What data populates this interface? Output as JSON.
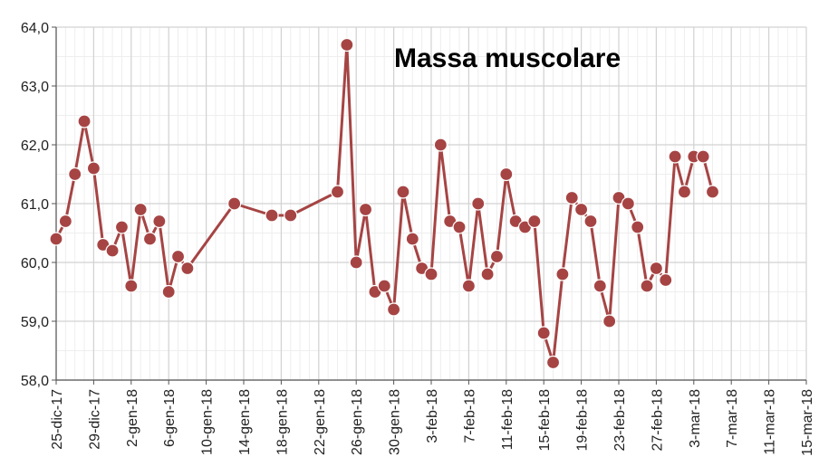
{
  "chart_data": {
    "type": "line",
    "title": "Massa muscolare",
    "xlabel": "",
    "ylabel": "",
    "ylim": [
      58.0,
      64.0
    ],
    "y_ticks": [
      "58,0",
      "59,0",
      "60,0",
      "61,0",
      "62,0",
      "63,0",
      "64,0"
    ],
    "x_range_days": [
      0,
      80
    ],
    "x_tick_days": [
      0,
      4,
      8,
      12,
      16,
      20,
      24,
      28,
      32,
      36,
      40,
      44,
      48,
      52,
      56,
      60,
      64,
      68,
      72,
      76,
      80
    ],
    "x_ticks": [
      "25-dic-17",
      "29-dic-17",
      "2-gen-18",
      "6-gen-18",
      "10-gen-18",
      "14-gen-18",
      "18-gen-18",
      "22-gen-18",
      "26-gen-18",
      "30-gen-18",
      "3-feb-18",
      "7-feb-18",
      "11-feb-18",
      "15-feb-18",
      "19-feb-18",
      "23-feb-18",
      "27-feb-18",
      "3-mar-18",
      "7-mar-18",
      "11-mar-18",
      "15-mar-18"
    ],
    "grid": true,
    "series": [
      {
        "name": "Massa muscolare",
        "color": "#a64444",
        "x": [
          0,
          1,
          2,
          3,
          4,
          5,
          6,
          7,
          8,
          9,
          10,
          11,
          12,
          13,
          14,
          19,
          23,
          25,
          30,
          31,
          32,
          33,
          34,
          35,
          36,
          37,
          38,
          39,
          40,
          41,
          42,
          43,
          44,
          45,
          46,
          47,
          48,
          49,
          50,
          51,
          52,
          53,
          54,
          55,
          56,
          57,
          58,
          59,
          60,
          61,
          62,
          63,
          64,
          65,
          66,
          67,
          68,
          69,
          70
        ],
        "values": [
          60.4,
          60.7,
          61.5,
          62.4,
          61.6,
          60.3,
          60.2,
          60.6,
          59.6,
          60.9,
          60.4,
          60.7,
          59.5,
          60.1,
          59.9,
          61.0,
          60.8,
          60.8,
          61.2,
          63.7,
          60.0,
          60.9,
          59.5,
          59.6,
          59.2,
          61.2,
          60.4,
          59.9,
          59.8,
          62.0,
          60.7,
          60.6,
          59.6,
          61.0,
          59.8,
          60.1,
          61.5,
          60.7,
          60.6,
          60.7,
          58.8,
          58.3,
          59.8,
          61.1,
          60.9,
          60.7,
          59.6,
          59.0,
          61.1,
          61.0,
          60.6,
          59.6,
          59.9,
          59.7,
          61.8,
          61.2,
          61.8,
          61.8,
          61.2
        ]
      }
    ]
  }
}
